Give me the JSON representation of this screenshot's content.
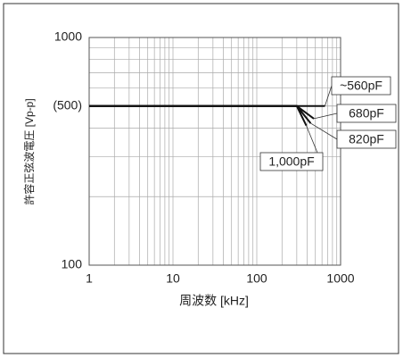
{
  "chart_data": {
    "type": "line",
    "xlabel": "周波数 [kHz]",
    "ylabel": "許容正弦波電圧 [Vp-p]",
    "xlog": true,
    "ylog": true,
    "grid": true,
    "xlim": [
      1,
      1000
    ],
    "ylim": [
      100,
      1000
    ],
    "xticks": [
      1,
      10,
      100,
      1000
    ],
    "yticks": [
      100,
      {
        "value": 500,
        "label": "(500)"
      },
      1000
    ],
    "series": [
      {
        "name": "~560pF",
        "color": "#111",
        "x": [
          1,
          300,
          650
        ],
        "values": [
          500,
          500,
          500
        ]
      },
      {
        "name": "680pF",
        "color": "#111",
        "x": [
          1,
          300,
          480
        ],
        "values": [
          500,
          500,
          440
        ]
      },
      {
        "name": "820pF",
        "color": "#111",
        "x": [
          1,
          300,
          440
        ],
        "values": [
          500,
          500,
          420
        ]
      },
      {
        "name": "1,000pF",
        "color": "#111",
        "x": [
          1,
          300,
          390
        ],
        "values": [
          500,
          500,
          410
        ]
      }
    ]
  }
}
